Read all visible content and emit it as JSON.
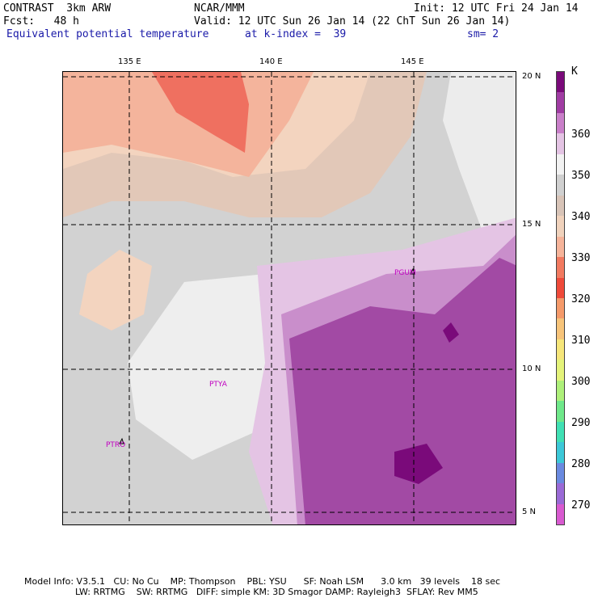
{
  "header": {
    "model": "CONTRAST  3km ARW",
    "org": "NCAR/MMM",
    "init": "Init: 12 UTC Fri 24 Jan 14",
    "fcst": "Fcst:   48 h",
    "valid": "Valid: 12 UTC Sun 26 Jan 14 (22 ChT Sun 26 Jan 14)",
    "field": "Equivalent potential temperature",
    "level": "at k-index =  39",
    "smooth": "sm= 2"
  },
  "axes": {
    "lon_labels": [
      "135 E",
      "140 E",
      "145 E"
    ],
    "lat_labels": [
      "20 N",
      "15 N",
      "10 N",
      "5 N"
    ]
  },
  "stations": [
    "PGUM",
    "PTYA",
    "PTRO"
  ],
  "colorbar": {
    "unit": "K",
    "labels": [
      "360",
      "350",
      "340",
      "330",
      "320",
      "310",
      "300",
      "290",
      "280",
      "270"
    ],
    "colors": [
      "#7a0a7a",
      "#a03ca3",
      "#c97fc9",
      "#e4c4e4",
      "#f2f2f2",
      "#d0d0d0",
      "#d8c4b8",
      "#f0d2bc",
      "#f6b49a",
      "#f27a60",
      "#ef4a3a",
      "#f59a6a",
      "#f7c47a",
      "#f6e67a",
      "#e4f37a",
      "#aef07a",
      "#6fe88a",
      "#40e0b4",
      "#3cc8d8",
      "#6a8ae0",
      "#9a6ad6",
      "#d85ad0"
    ]
  },
  "footer": {
    "line1": "Model Info: V3.5.1   CU: No Cu    MP: Thompson    PBL: YSU      SF: Noah LSM      3.0 km   39 levels    18 sec",
    "line2": "                  LW: RRTMG    SW: RRTMG   DIFF: simple KM: 3D Smagor DAMP: Rayleigh3  SFLAY: Rev MM5"
  }
}
